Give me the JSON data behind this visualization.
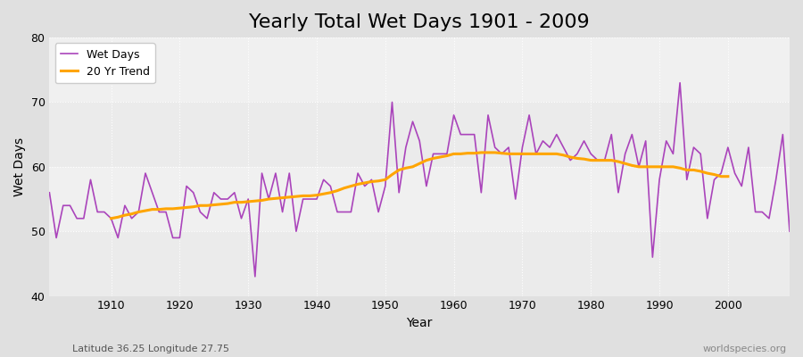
{
  "title": "Yearly Total Wet Days 1901 - 2009",
  "xlabel": "Year",
  "ylabel": "Wet Days",
  "subtitle_left": "Latitude 36.25 Longitude 27.75",
  "subtitle_right": "worldspecies.org",
  "ylim": [
    40,
    80
  ],
  "yticks": [
    40,
    50,
    60,
    70,
    80
  ],
  "line_color": "#AA44BB",
  "trend_color": "#FFA500",
  "fig_bg_color": "#E0E0E0",
  "plot_bg_color": "#F0F0F0",
  "years": [
    1901,
    1902,
    1903,
    1904,
    1905,
    1906,
    1907,
    1908,
    1909,
    1910,
    1911,
    1912,
    1913,
    1914,
    1915,
    1916,
    1917,
    1918,
    1919,
    1920,
    1921,
    1922,
    1923,
    1924,
    1925,
    1926,
    1927,
    1928,
    1929,
    1930,
    1931,
    1932,
    1933,
    1934,
    1935,
    1936,
    1937,
    1938,
    1939,
    1940,
    1941,
    1942,
    1943,
    1944,
    1945,
    1946,
    1947,
    1948,
    1949,
    1950,
    1951,
    1952,
    1953,
    1954,
    1955,
    1956,
    1957,
    1958,
    1959,
    1960,
    1961,
    1962,
    1963,
    1964,
    1965,
    1966,
    1967,
    1968,
    1969,
    1970,
    1971,
    1972,
    1973,
    1974,
    1975,
    1976,
    1977,
    1978,
    1979,
    1980,
    1981,
    1982,
    1983,
    1984,
    1985,
    1986,
    1987,
    1988,
    1989,
    1990,
    1991,
    1992,
    1993,
    1994,
    1995,
    1996,
    1997,
    1998,
    1999,
    2000,
    2001,
    2002,
    2003,
    2004,
    2005,
    2006,
    2007,
    2008,
    2009
  ],
  "wet_days": [
    56,
    49,
    54,
    54,
    52,
    52,
    58,
    53,
    53,
    52,
    49,
    54,
    52,
    53,
    59,
    56,
    53,
    53,
    49,
    49,
    57,
    56,
    53,
    52,
    56,
    55,
    55,
    56,
    52,
    55,
    43,
    59,
    55,
    59,
    53,
    59,
    50,
    55,
    55,
    55,
    58,
    57,
    53,
    53,
    53,
    59,
    57,
    58,
    53,
    57,
    70,
    56,
    63,
    67,
    64,
    57,
    62,
    62,
    62,
    68,
    65,
    65,
    65,
    56,
    68,
    63,
    62,
    63,
    55,
    63,
    68,
    62,
    64,
    63,
    65,
    63,
    61,
    62,
    64,
    62,
    61,
    61,
    65,
    56,
    62,
    65,
    60,
    64,
    46,
    58,
    64,
    62,
    73,
    58,
    63,
    62,
    52,
    58,
    59,
    63,
    59,
    57,
    63,
    53,
    53,
    52,
    58,
    65,
    50
  ],
  "trend_years": [
    1910,
    1911,
    1912,
    1913,
    1914,
    1915,
    1916,
    1917,
    1918,
    1919,
    1920,
    1921,
    1922,
    1923,
    1924,
    1925,
    1926,
    1927,
    1928,
    1929,
    1930,
    1931,
    1932,
    1933,
    1934,
    1935,
    1936,
    1937,
    1938,
    1939,
    1940,
    1941,
    1942,
    1943,
    1944,
    1945,
    1946,
    1947,
    1948,
    1949,
    1950,
    1951,
    1952,
    1953,
    1954,
    1955,
    1956,
    1957,
    1958,
    1959,
    1960,
    1961,
    1962,
    1963,
    1964,
    1965,
    1966,
    1967,
    1968,
    1969,
    1970,
    1971,
    1972,
    1973,
    1974,
    1975,
    1976,
    1977,
    1978,
    1979,
    1980,
    1981,
    1982,
    1983,
    1984,
    1985,
    1986,
    1987,
    1988,
    1989,
    1990,
    1991,
    1992,
    1993,
    1994,
    1995,
    1996,
    1997,
    1998,
    1999,
    2000
  ],
  "trend_values": [
    52.0,
    52.2,
    52.5,
    52.7,
    53.0,
    53.2,
    53.4,
    53.4,
    53.5,
    53.5,
    53.6,
    53.7,
    53.8,
    54.0,
    54.0,
    54.1,
    54.2,
    54.3,
    54.5,
    54.5,
    54.6,
    54.7,
    54.8,
    55.0,
    55.1,
    55.2,
    55.3,
    55.4,
    55.5,
    55.5,
    55.6,
    55.8,
    56.0,
    56.3,
    56.7,
    57.0,
    57.3,
    57.5,
    57.7,
    57.8,
    58.0,
    58.8,
    59.5,
    59.8,
    60.0,
    60.5,
    61.0,
    61.3,
    61.5,
    61.7,
    62.0,
    62.0,
    62.1,
    62.1,
    62.2,
    62.2,
    62.2,
    62.1,
    62.0,
    62.0,
    62.0,
    62.0,
    62.0,
    62.0,
    62.0,
    62.0,
    61.8,
    61.5,
    61.3,
    61.2,
    61.0,
    61.0,
    61.0,
    61.0,
    60.8,
    60.5,
    60.2,
    60.0,
    60.0,
    60.0,
    60.0,
    60.0,
    60.0,
    59.8,
    59.5,
    59.5,
    59.3,
    59.0,
    58.8,
    58.5,
    58.5
  ],
  "xticks": [
    1910,
    1920,
    1930,
    1940,
    1950,
    1960,
    1970,
    1980,
    1990,
    2000
  ],
  "xlim": [
    1901,
    2009
  ],
  "title_fontsize": 16,
  "axis_label_fontsize": 10,
  "tick_fontsize": 9,
  "legend_fontsize": 9,
  "subtitle_fontsize": 8
}
